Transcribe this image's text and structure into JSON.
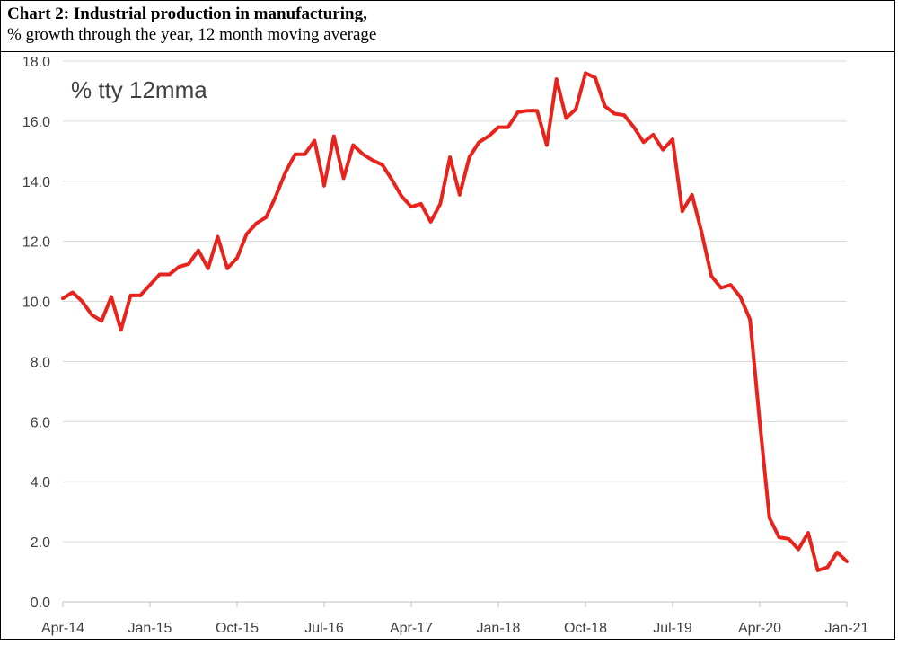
{
  "header": {
    "title": "Chart 2: Industrial production in manufacturing,",
    "subtitle": "% growth through the year, 12 month moving average"
  },
  "chart_data": {
    "type": "line",
    "annotation": "% tty 12mma",
    "y_ticks": [
      "0.0",
      "2.0",
      "4.0",
      "6.0",
      "8.0",
      "10.0",
      "12.0",
      "14.0",
      "16.0",
      "18.0"
    ],
    "x_ticks": [
      "Apr-14",
      "Jan-15",
      "Oct-15",
      "Jul-16",
      "Apr-17",
      "Jan-18",
      "Oct-18",
      "Jul-19",
      "Apr-20",
      "Jan-21"
    ],
    "ylim": [
      0,
      18
    ],
    "grid": true,
    "legend": "none",
    "line_color": "#e8231c",
    "x_start": "Apr-14",
    "x_end": "Jan-21",
    "frequency": "monthly",
    "series": [
      {
        "values": [
          10.1,
          10.3,
          10.0,
          9.55,
          9.35,
          10.15,
          9.05,
          10.2,
          10.2,
          10.55,
          10.9,
          10.9,
          11.15,
          11.25,
          11.7,
          11.1,
          12.15,
          11.1,
          11.45,
          12.25,
          12.6,
          12.8,
          13.5,
          14.3,
          14.9,
          14.9,
          15.35,
          13.85,
          15.5,
          14.1,
          15.2,
          14.9,
          14.7,
          14.55,
          14.05,
          13.5,
          13.15,
          13.25,
          12.65,
          13.25,
          14.8,
          13.55,
          14.8,
          15.3,
          15.5,
          15.8,
          15.8,
          16.3,
          16.35,
          16.35,
          15.2,
          17.4,
          16.1,
          16.4,
          17.6,
          17.45,
          16.5,
          16.25,
          16.2,
          15.8,
          15.3,
          15.55,
          15.05,
          15.4,
          13.0,
          13.55,
          12.3,
          10.85,
          10.45,
          10.55,
          10.15,
          9.4,
          6.0,
          2.8,
          2.15,
          2.1,
          1.75,
          2.3,
          1.05,
          1.15,
          1.65,
          1.35
        ]
      }
    ]
  }
}
